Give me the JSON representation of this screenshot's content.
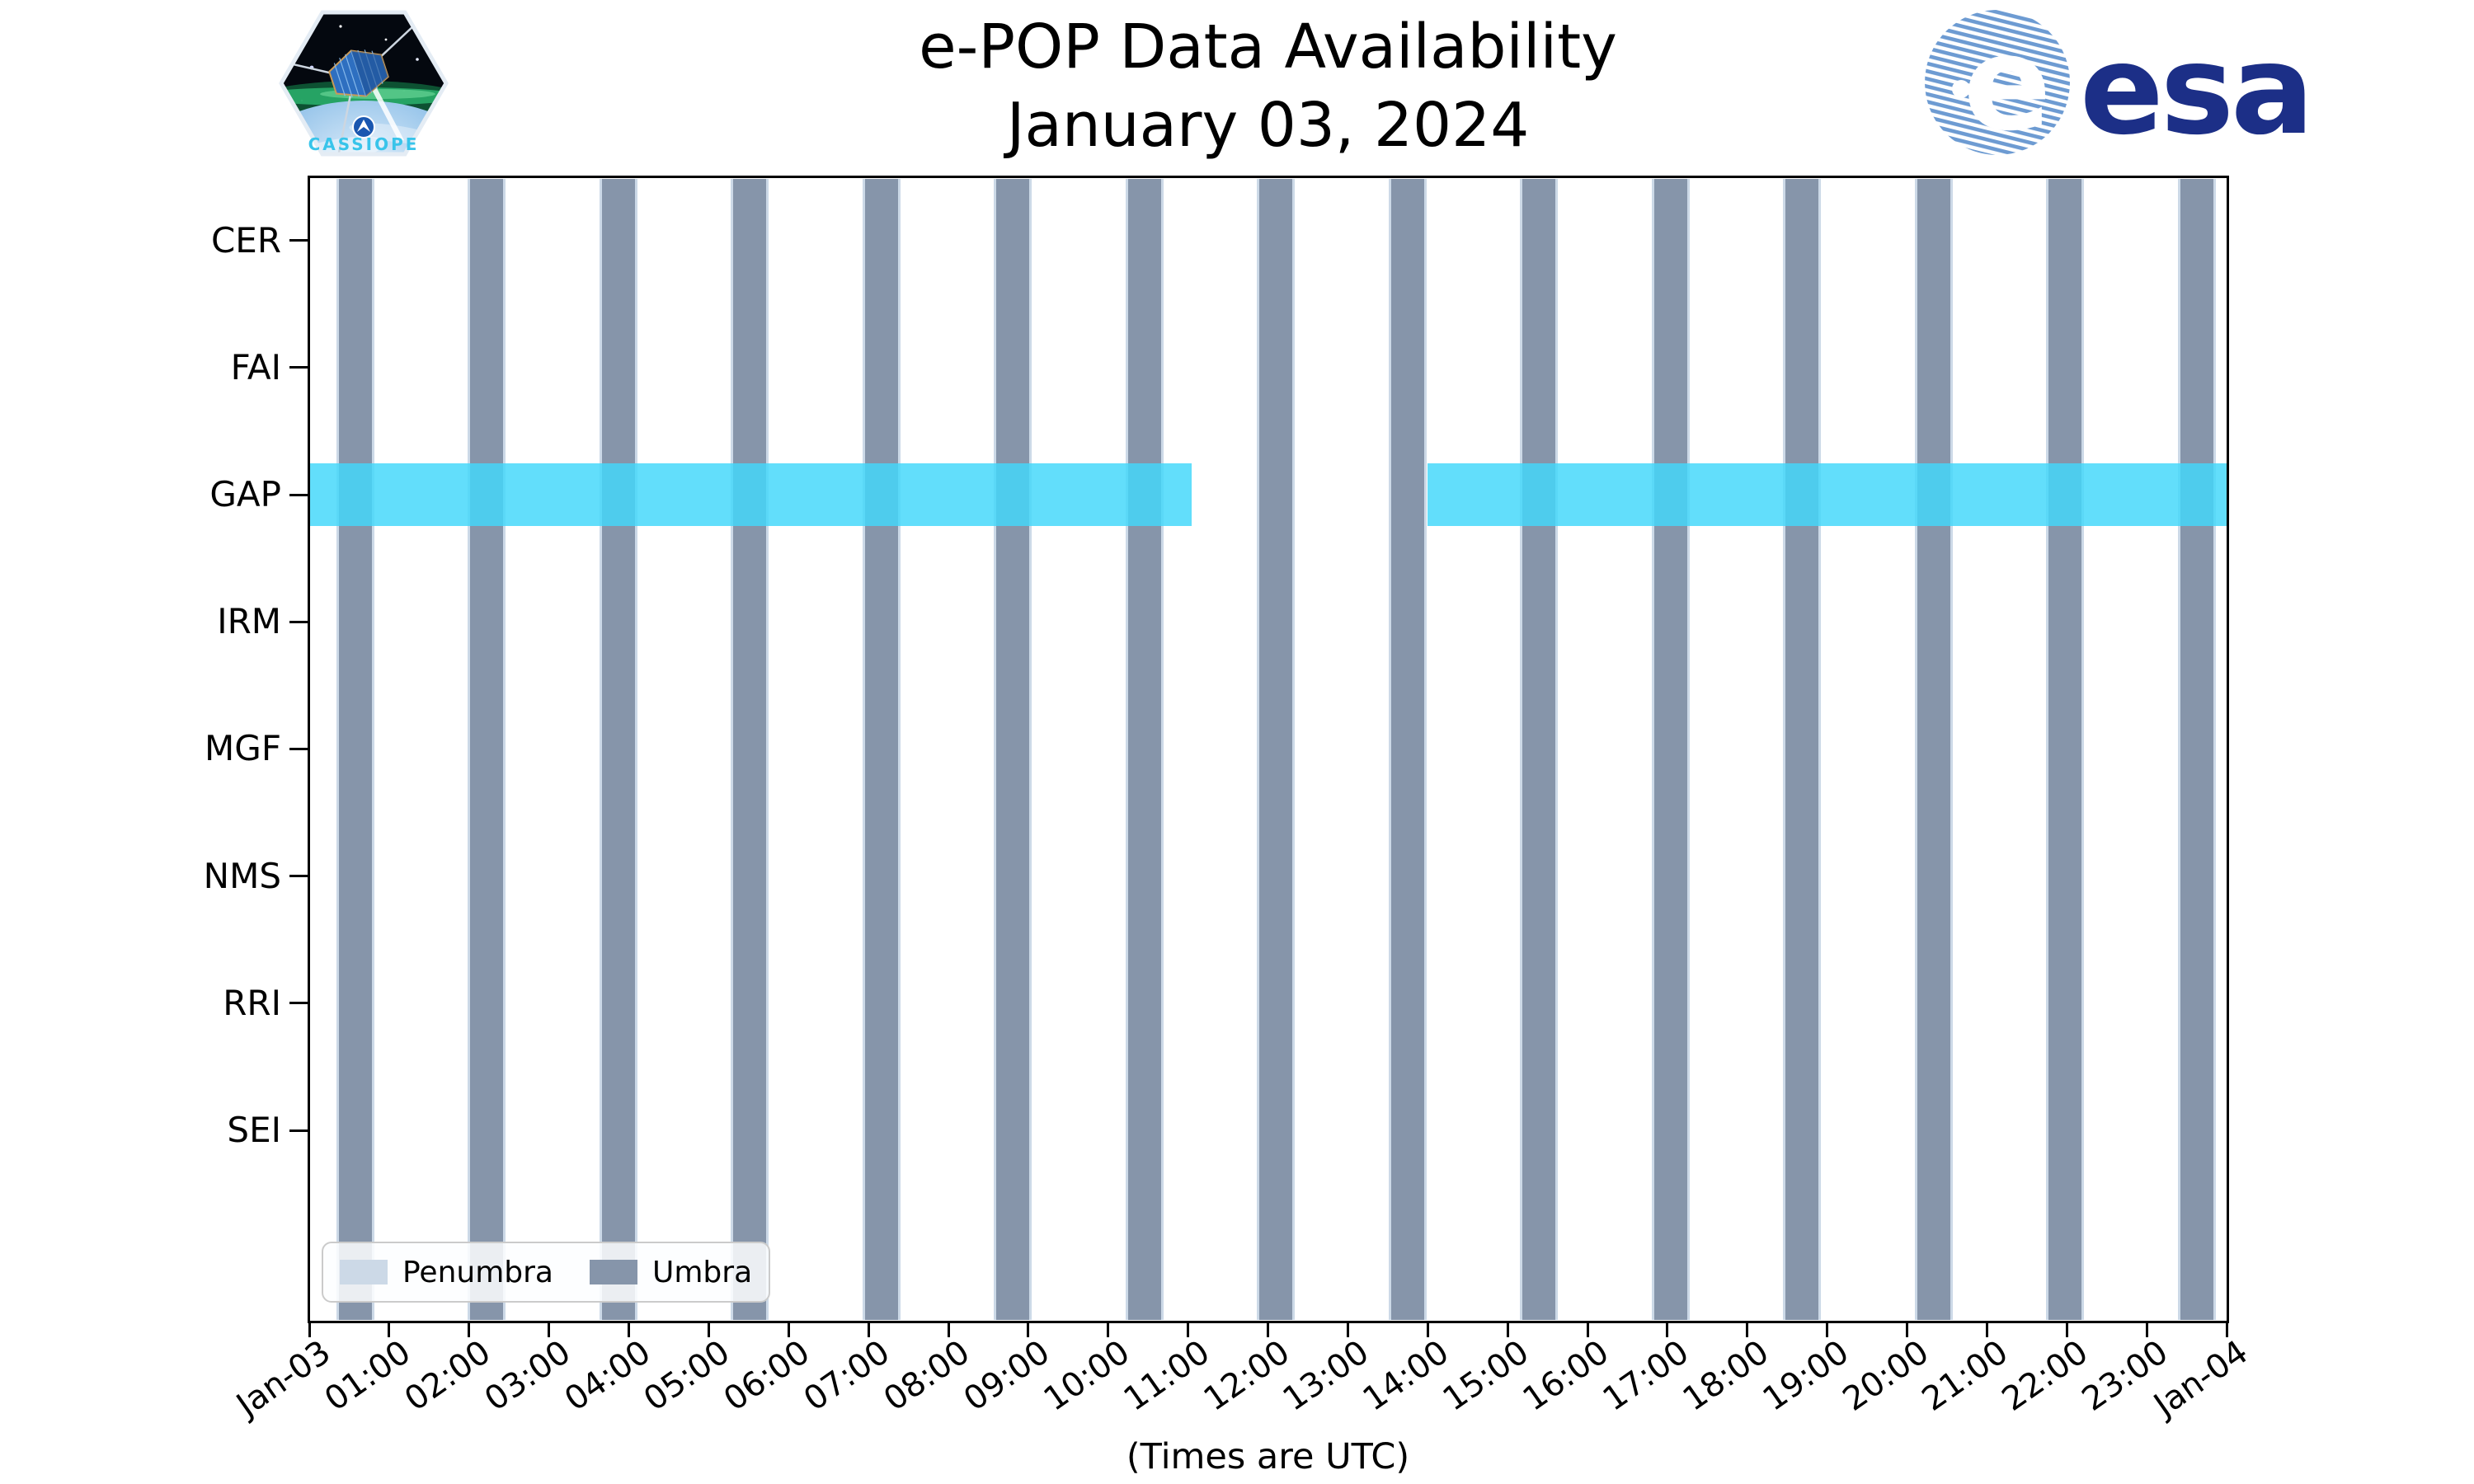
{
  "header": {
    "title_line1": "e-POP Data Availability",
    "title_line2": "January 03, 2024",
    "cassiope_patch_label": "CASSIOPE",
    "esa_wordmark": "esa"
  },
  "chart_data": {
    "type": "timeline",
    "title": "e-POP Data Availability",
    "subtitle": "January 03, 2024",
    "x_axis": {
      "label": "(Times are UTC)",
      "tick_labels": [
        "Jan-03",
        "01:00",
        "02:00",
        "03:00",
        "04:00",
        "05:00",
        "06:00",
        "07:00",
        "08:00",
        "09:00",
        "10:00",
        "11:00",
        "12:00",
        "13:00",
        "14:00",
        "15:00",
        "16:00",
        "17:00",
        "18:00",
        "19:00",
        "20:00",
        "21:00",
        "22:00",
        "23:00",
        "Jan-04"
      ],
      "range_hours": [
        0,
        24
      ],
      "grid": false
    },
    "y_axis": {
      "categories": [
        "CER",
        "FAI",
        "GAP",
        "IRM",
        "MGF",
        "NMS",
        "RRI",
        "SEI"
      ]
    },
    "shadow_events": {
      "umbra_centers_hours": [
        0.577,
        2.223,
        3.87,
        5.516,
        7.163,
        8.809,
        10.456,
        12.102,
        13.749,
        15.395,
        17.042,
        18.688,
        20.335,
        21.981,
        23.628
      ],
      "umbra_half_width_hours": 0.207,
      "penumbra_pad_hours": 0.031
    },
    "availability": [
      {
        "instrument": "GAP",
        "intervals_hours": [
          [
            0.0,
            11.04
          ],
          [
            14.0,
            24.0
          ]
        ]
      }
    ],
    "legend": [
      {
        "label": "Penumbra",
        "color": "#ccd9e7"
      },
      {
        "label": "Umbra",
        "color": "#8695aa"
      }
    ],
    "colors": {
      "umbra": "#8695aa",
      "penumbra": "#ccd9e7",
      "availability_fill": "rgba(66,215,250,0.83)",
      "axis": "#000000"
    },
    "legend_position": "lower-left"
  }
}
